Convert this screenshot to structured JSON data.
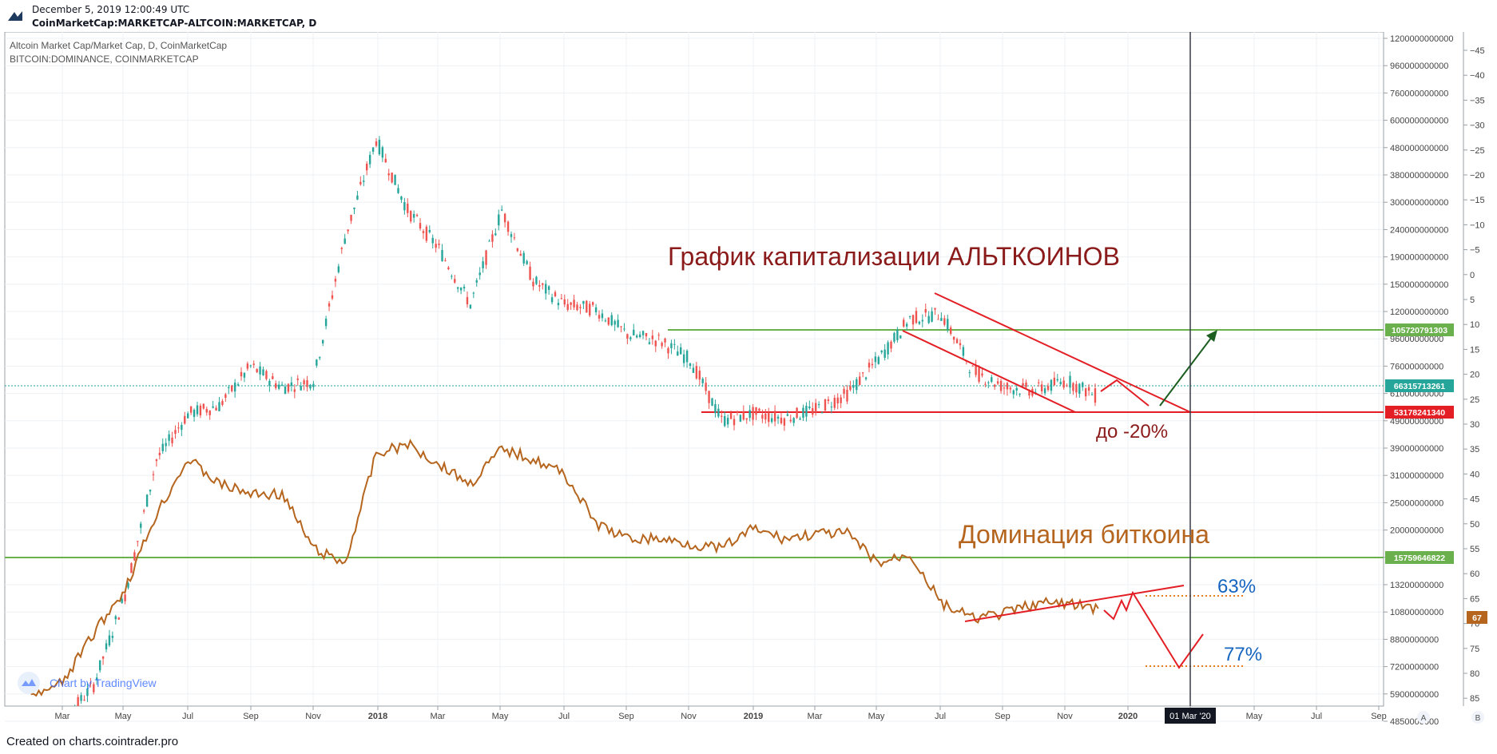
{
  "header": {
    "timestamp": "December 5, 2019 12:00:49 UTC",
    "symbol": "CoinMarketCap:MARKETCAP-ALTCOIN:MARKETCAP, D"
  },
  "footer": {
    "created": "Created on charts.cointrader.pro"
  },
  "legend": {
    "series1": "Altcoin Market Cap/Market Cap, D, CoinMarketCap",
    "series2": "BITCOIN:DOMINANCE, COINMARKETCAP"
  },
  "watermark": "Chart by TradingView",
  "annotations": {
    "title_alt": "График капитализации АЛЬТКОИНОВ",
    "title_btc": "Доминация биткоина",
    "drop": "до -20%",
    "pct63": "63%",
    "pct77": "77%"
  },
  "colors": {
    "alt_up": "#26a69a",
    "alt_down": "#ef5350",
    "dominance": "#b5651d",
    "resistance": "#6ab04c",
    "trend": "#e31e24",
    "target_up": "#1b5e20",
    "annotation_blue": "#1565c0",
    "annotation_red": "#8b0000"
  },
  "chart_data": {
    "type": "line",
    "x_ticks": [
      "Mar",
      "May",
      "Jul",
      "Sep",
      "Nov",
      "2018",
      "Mar",
      "May",
      "Jul",
      "Sep",
      "Nov",
      "2019",
      "Mar",
      "May",
      "Jul",
      "Sep",
      "Nov",
      "2020",
      "01 Mar '20",
      "May",
      "Jul",
      "Sep"
    ],
    "x_highlight": "01 Mar '20",
    "right_axis_ticks": [
      "1200000000000",
      "960000000000",
      "760000000000",
      "600000000000",
      "480000000000",
      "380000000000",
      "300000000000",
      "240000000000",
      "190000000000",
      "150000000000",
      "120000000000",
      "96000000000",
      "76000000000",
      "61000000000",
      "49000000000",
      "39000000000",
      "31000000000",
      "25000000000",
      "20000000000",
      "16000000000",
      "13200000000",
      "10800000000",
      "8800000000",
      "7200000000",
      "5900000000",
      "4850000000"
    ],
    "dominance_axis_ticks": [
      "45",
      "40",
      "35",
      "30",
      "25",
      "20",
      "15",
      "10",
      "5",
      "0",
      "5",
      "10",
      "15",
      "20",
      "25",
      "30",
      "35",
      "40",
      "45",
      "50",
      "55",
      "60",
      "65",
      "70",
      "75",
      "80",
      "85"
    ],
    "price_labels": [
      {
        "value": "105720791303",
        "color": "#6ab04c"
      },
      {
        "value": "66315713261",
        "color": "#26a69a"
      },
      {
        "value": "53178241340",
        "color": "#e31e24"
      },
      {
        "value": "15759646822",
        "color": "#6ab04c"
      },
      {
        "value": "67",
        "color": "#b5651d"
      }
    ],
    "scale_buttons": [
      "A",
      "B"
    ],
    "series": [
      {
        "name": "Altcoin Market Cap/Market Cap, D, CoinMarketCap",
        "style": "candles",
        "x": [
          "2017-02",
          "2017-03",
          "2017-04",
          "2017-05",
          "2017-06",
          "2017-07",
          "2017-08",
          "2017-09",
          "2017-10",
          "2017-11",
          "2017-12",
          "2018-01",
          "2018-02",
          "2018-03",
          "2018-04",
          "2018-05",
          "2018-06",
          "2018-07",
          "2018-08",
          "2018-09",
          "2018-10",
          "2018-11",
          "2018-12",
          "2019-01",
          "2019-02",
          "2019-03",
          "2019-04",
          "2019-05",
          "2019-06",
          "2019-07",
          "2019-08",
          "2019-09",
          "2019-10",
          "2019-11",
          "2019-12"
        ],
        "y": [
          4850000000,
          4800000000,
          6500000000,
          13500000000,
          40000000000,
          58000000000,
          62000000000,
          85000000000,
          72000000000,
          76000000000,
          240000000000,
          530000000000,
          300000000000,
          220000000000,
          140000000000,
          300000000000,
          170000000000,
          140000000000,
          135000000000,
          110000000000,
          105000000000,
          90000000000,
          55000000000,
          58000000000,
          56000000000,
          60000000000,
          68000000000,
          90000000000,
          125000000000,
          130000000000,
          82000000000,
          72000000000,
          70000000000,
          76000000000,
          66315713261
        ]
      },
      {
        "name": "BITCOIN:DOMINANCE, COINMARKETCAP",
        "style": "line",
        "x": [
          "2017-02",
          "2017-03",
          "2017-04",
          "2017-05",
          "2017-06",
          "2017-07",
          "2017-08",
          "2017-09",
          "2017-10",
          "2017-11",
          "2017-12",
          "2018-01",
          "2018-02",
          "2018-03",
          "2018-04",
          "2018-05",
          "2018-06",
          "2018-07",
          "2018-08",
          "2018-09",
          "2018-10",
          "2018-11",
          "2018-12",
          "2019-01",
          "2019-02",
          "2019-03",
          "2019-04",
          "2019-05",
          "2019-06",
          "2019-07",
          "2019-08",
          "2019-09",
          "2019-10",
          "2019-11",
          "2019-12"
        ],
        "y": [
          85,
          82,
          72,
          63,
          48,
          37,
          42,
          44,
          44,
          55,
          58,
          36,
          34,
          38,
          42,
          35,
          37,
          40,
          50,
          53,
          53,
          54,
          55,
          51,
          53,
          52,
          52,
          58,
          56,
          66,
          69,
          68,
          66,
          66,
          67
        ]
      }
    ]
  }
}
